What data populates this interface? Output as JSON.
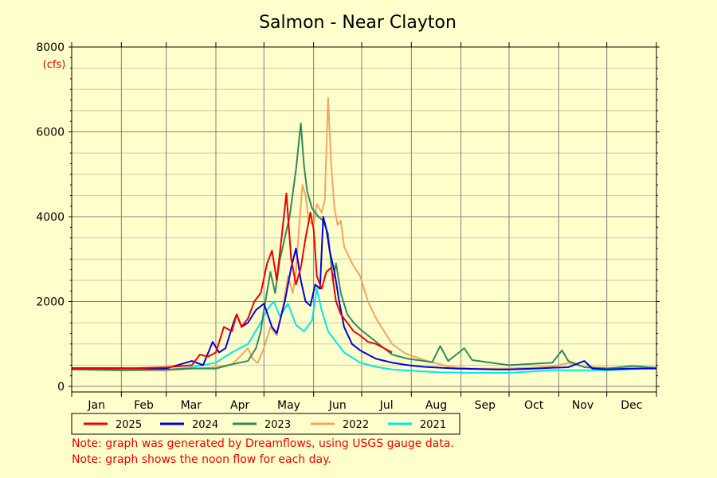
{
  "colors": {
    "background": "#ffffcc",
    "grid": "#808080",
    "note": "#ee0000",
    "unit": "#cc0000"
  },
  "chart_data": {
    "type": "line",
    "title": "Salmon - Near Clayton",
    "ylabel_unit": "(cfs)",
    "ylim": [
      0,
      8000
    ],
    "yticks": [
      0,
      2000,
      4000,
      6000,
      8000
    ],
    "xlim": [
      0,
      365
    ],
    "month_starts": [
      0,
      31,
      59,
      90,
      120,
      151,
      181,
      212,
      243,
      273,
      304,
      334,
      365
    ],
    "month_labels": [
      "Jan",
      "Feb",
      "Mar",
      "Apr",
      "May",
      "Jun",
      "Jul",
      "Aug",
      "Sep",
      "Oct",
      "Nov",
      "Dec"
    ],
    "x_unit": "day of year",
    "grid": true,
    "legend_position": "below-plot",
    "series": [
      {
        "name": "2021",
        "color": "#00e5ee",
        "points": [
          [
            0,
            420
          ],
          [
            31,
            400
          ],
          [
            59,
            380
          ],
          [
            75,
            450
          ],
          [
            90,
            560
          ],
          [
            100,
            800
          ],
          [
            110,
            1000
          ],
          [
            118,
            1500
          ],
          [
            122,
            1800
          ],
          [
            126,
            2000
          ],
          [
            130,
            1650
          ],
          [
            135,
            1950
          ],
          [
            140,
            1450
          ],
          [
            145,
            1300
          ],
          [
            150,
            1550
          ],
          [
            153,
            2300
          ],
          [
            156,
            1800
          ],
          [
            160,
            1300
          ],
          [
            165,
            1050
          ],
          [
            170,
            800
          ],
          [
            180,
            560
          ],
          [
            190,
            460
          ],
          [
            200,
            400
          ],
          [
            215,
            360
          ],
          [
            230,
            330
          ],
          [
            250,
            320
          ],
          [
            273,
            320
          ],
          [
            300,
            380
          ],
          [
            334,
            380
          ],
          [
            365,
            430
          ]
        ]
      },
      {
        "name": "2022",
        "color": "#f4a460",
        "points": [
          [
            0,
            400
          ],
          [
            31,
            380
          ],
          [
            59,
            370
          ],
          [
            75,
            420
          ],
          [
            90,
            450
          ],
          [
            100,
            520
          ],
          [
            105,
            700
          ],
          [
            110,
            900
          ],
          [
            113,
            650
          ],
          [
            116,
            550
          ],
          [
            120,
            900
          ],
          [
            124,
            1400
          ],
          [
            128,
            1200
          ],
          [
            132,
            1900
          ],
          [
            135,
            2600
          ],
          [
            138,
            2200
          ],
          [
            140,
            2700
          ],
          [
            142,
            3800
          ],
          [
            144,
            4750
          ],
          [
            146,
            4500
          ],
          [
            148,
            3900
          ],
          [
            151,
            3800
          ],
          [
            153,
            4300
          ],
          [
            156,
            4100
          ],
          [
            158,
            4400
          ],
          [
            160,
            6800
          ],
          [
            162,
            5200
          ],
          [
            164,
            4200
          ],
          [
            166,
            3800
          ],
          [
            168,
            3900
          ],
          [
            170,
            3300
          ],
          [
            175,
            2900
          ],
          [
            180,
            2600
          ],
          [
            185,
            2000
          ],
          [
            190,
            1600
          ],
          [
            195,
            1300
          ],
          [
            200,
            1000
          ],
          [
            208,
            780
          ],
          [
            220,
            620
          ],
          [
            235,
            470
          ],
          [
            250,
            420
          ],
          [
            273,
            420
          ],
          [
            300,
            470
          ],
          [
            310,
            550
          ],
          [
            320,
            460
          ],
          [
            334,
            440
          ],
          [
            350,
            420
          ],
          [
            365,
            440
          ]
        ]
      },
      {
        "name": "2023",
        "color": "#2e8b57",
        "points": [
          [
            0,
            400
          ],
          [
            31,
            380
          ],
          [
            59,
            400
          ],
          [
            75,
            420
          ],
          [
            90,
            420
          ],
          [
            100,
            520
          ],
          [
            110,
            600
          ],
          [
            115,
            900
          ],
          [
            118,
            1300
          ],
          [
            120,
            1800
          ],
          [
            124,
            2700
          ],
          [
            127,
            2200
          ],
          [
            130,
            3000
          ],
          [
            133,
            3500
          ],
          [
            136,
            4000
          ],
          [
            140,
            5100
          ],
          [
            143,
            6200
          ],
          [
            145,
            5200
          ],
          [
            147,
            4600
          ],
          [
            150,
            4200
          ],
          [
            154,
            4000
          ],
          [
            157,
            3900
          ],
          [
            160,
            3600
          ],
          [
            163,
            2500
          ],
          [
            165,
            2900
          ],
          [
            168,
            2200
          ],
          [
            172,
            1700
          ],
          [
            176,
            1500
          ],
          [
            180,
            1350
          ],
          [
            185,
            1200
          ],
          [
            190,
            1050
          ],
          [
            195,
            900
          ],
          [
            200,
            750
          ],
          [
            210,
            650
          ],
          [
            225,
            570
          ],
          [
            230,
            950
          ],
          [
            235,
            600
          ],
          [
            245,
            900
          ],
          [
            250,
            620
          ],
          [
            273,
            500
          ],
          [
            300,
            560
          ],
          [
            306,
            850
          ],
          [
            310,
            600
          ],
          [
            320,
            450
          ],
          [
            334,
            420
          ],
          [
            350,
            480
          ],
          [
            365,
            440
          ]
        ]
      },
      {
        "name": "2024",
        "color": "#0000dd",
        "points": [
          [
            0,
            430
          ],
          [
            31,
            430
          ],
          [
            59,
            420
          ],
          [
            75,
            600
          ],
          [
            82,
            500
          ],
          [
            88,
            1050
          ],
          [
            92,
            800
          ],
          [
            96,
            900
          ],
          [
            101,
            1500
          ],
          [
            103,
            1700
          ],
          [
            106,
            1400
          ],
          [
            110,
            1500
          ],
          [
            115,
            1800
          ],
          [
            120,
            1950
          ],
          [
            125,
            1400
          ],
          [
            128,
            1250
          ],
          [
            133,
            2000
          ],
          [
            137,
            2800
          ],
          [
            140,
            3250
          ],
          [
            143,
            2500
          ],
          [
            146,
            2000
          ],
          [
            149,
            1900
          ],
          [
            152,
            2400
          ],
          [
            155,
            2300
          ],
          [
            157,
            4000
          ],
          [
            159,
            3700
          ],
          [
            161,
            3200
          ],
          [
            164,
            2700
          ],
          [
            167,
            2000
          ],
          [
            170,
            1400
          ],
          [
            175,
            1000
          ],
          [
            180,
            850
          ],
          [
            185,
            750
          ],
          [
            190,
            650
          ],
          [
            200,
            560
          ],
          [
            210,
            500
          ],
          [
            220,
            460
          ],
          [
            240,
            420
          ],
          [
            265,
            400
          ],
          [
            273,
            400
          ],
          [
            290,
            420
          ],
          [
            300,
            440
          ],
          [
            310,
            450
          ],
          [
            320,
            600
          ],
          [
            325,
            420
          ],
          [
            334,
            400
          ],
          [
            350,
            420
          ],
          [
            365,
            420
          ]
        ]
      },
      {
        "name": "2025",
        "color": "#ee0000",
        "points": [
          [
            0,
            420
          ],
          [
            31,
            420
          ],
          [
            59,
            450
          ],
          [
            75,
            500
          ],
          [
            80,
            750
          ],
          [
            85,
            700
          ],
          [
            90,
            800
          ],
          [
            95,
            1400
          ],
          [
            100,
            1300
          ],
          [
            103,
            1700
          ],
          [
            106,
            1400
          ],
          [
            110,
            1600
          ],
          [
            114,
            2000
          ],
          [
            118,
            2200
          ],
          [
            122,
            2900
          ],
          [
            125,
            3200
          ],
          [
            128,
            2500
          ],
          [
            131,
            3500
          ],
          [
            134,
            4550
          ],
          [
            137,
            3000
          ],
          [
            140,
            2400
          ],
          [
            143,
            2800
          ],
          [
            146,
            3500
          ],
          [
            149,
            4100
          ],
          [
            151,
            3700
          ],
          [
            153,
            2600
          ],
          [
            156,
            2300
          ],
          [
            159,
            2700
          ],
          [
            162,
            2800
          ],
          [
            165,
            2000
          ],
          [
            168,
            1700
          ],
          [
            172,
            1500
          ],
          [
            176,
            1300
          ],
          [
            180,
            1200
          ],
          [
            185,
            1050
          ],
          [
            190,
            1000
          ],
          [
            195,
            900
          ],
          [
            200,
            800
          ]
        ]
      }
    ],
    "legend_order": [
      "2025",
      "2024",
      "2023",
      "2022",
      "2021"
    ]
  },
  "notes": [
    "Note: graph was generated by Dreamflows, using USGS gauge data.",
    "Note: graph shows the noon flow for each day."
  ]
}
